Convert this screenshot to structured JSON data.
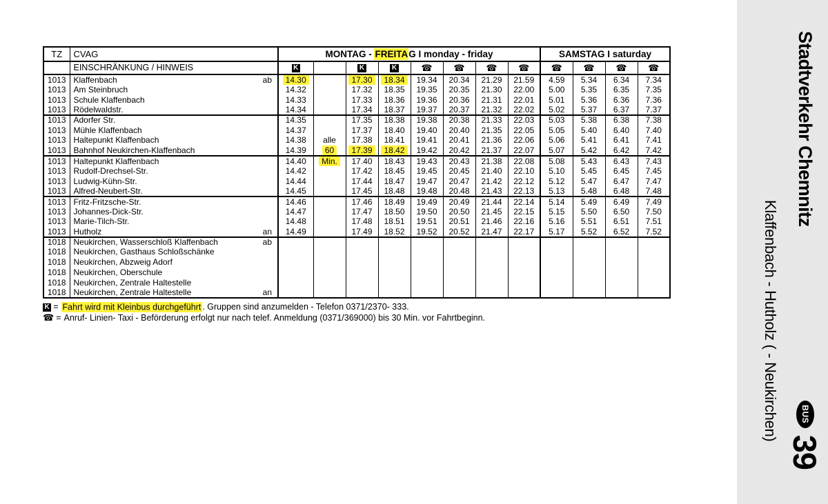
{
  "colors": {
    "highlight": "#fff23c",
    "sidebar_bg": "#e7e7e7",
    "badge_bg": "#000000"
  },
  "icons": {
    "kleinbus": "K",
    "phone": "☎"
  },
  "table": {
    "tz_header": "TZ",
    "cvag_header": "CVAG",
    "restriction_header": "EINSCHRÄNKUNG / HINWEIS",
    "monfri_prefix": "MONTAG - ",
    "monfri_highlight": "FREITA",
    "monfri_suffix": "G I monday - friday",
    "samstag_header": "SAMSTAG I saturday",
    "symbols": [
      "kleinbus",
      "",
      "kleinbus",
      "kleinbus",
      "phone",
      "phone",
      "phone",
      "phone",
      "phone",
      "phone",
      "phone",
      "phone"
    ],
    "rows": [
      {
        "tz": "1013",
        "stop": "Klaffenbach",
        "marker": "ab",
        "group_start": false,
        "hl": [
          0,
          2,
          3
        ],
        "times": [
          "14.30",
          "",
          "17.30",
          "18.34",
          "19.34",
          "20.34",
          "21.29",
          "21.59",
          "4.59",
          "5.34",
          "6.34",
          "7.34"
        ]
      },
      {
        "tz": "1013",
        "stop": "Am Steinbruch",
        "marker": "",
        "group_start": false,
        "hl": [],
        "times": [
          "14.32",
          "",
          "17.32",
          "18.35",
          "19.35",
          "20.35",
          "21.30",
          "22.00",
          "5.00",
          "5.35",
          "6.35",
          "7.35"
        ]
      },
      {
        "tz": "1013",
        "stop": "Schule Klaffenbach",
        "marker": "",
        "group_start": false,
        "hl": [],
        "times": [
          "14.33",
          "",
          "17.33",
          "18.36",
          "19.36",
          "20.36",
          "21.31",
          "22.01",
          "5.01",
          "5.36",
          "6.36",
          "7.36"
        ]
      },
      {
        "tz": "1013",
        "stop": "Rödelwaldstr.",
        "marker": "",
        "group_start": false,
        "hl": [],
        "times": [
          "14.34",
          "",
          "17.34",
          "18.37",
          "19.37",
          "20.37",
          "21.32",
          "22.02",
          "5.02",
          "5.37",
          "6.37",
          "7.37"
        ]
      },
      {
        "tz": "1013",
        "stop": "Adorfer Str.",
        "marker": "",
        "group_start": true,
        "hl": [],
        "times": [
          "14.35",
          "",
          "17.35",
          "18.38",
          "19.38",
          "20.38",
          "21.33",
          "22.03",
          "5.03",
          "5.38",
          "6.38",
          "7.38"
        ]
      },
      {
        "tz": "1013",
        "stop": "Mühle Klaffenbach",
        "marker": "",
        "group_start": false,
        "hl": [],
        "times": [
          "14.37",
          "",
          "17.37",
          "18.40",
          "19.40",
          "20.40",
          "21.35",
          "22.05",
          "5.05",
          "5.40",
          "6.40",
          "7.40"
        ]
      },
      {
        "tz": "1013",
        "stop": "Haltepunkt Klaffenbach",
        "marker": "",
        "group_start": false,
        "hl": [],
        "times": [
          "14.38",
          "alle",
          "17.38",
          "18.41",
          "19.41",
          "20.41",
          "21.36",
          "22.06",
          "5.06",
          "5.41",
          "6.41",
          "7.41"
        ]
      },
      {
        "tz": "1013",
        "stop": "Bahnhof Neukirchen-Klaffenbach",
        "marker": "",
        "group_start": false,
        "hl": [
          1,
          2,
          3
        ],
        "times": [
          "14.39",
          "60",
          "17.39",
          "18.42",
          "19.42",
          "20.42",
          "21.37",
          "22.07",
          "5.07",
          "5.42",
          "6.42",
          "7.42"
        ]
      },
      {
        "tz": "1013",
        "stop": "Haltepunkt Klaffenbach",
        "marker": "",
        "group_start": true,
        "hl": [
          1
        ],
        "times": [
          "14.40",
          "Min.",
          "17.40",
          "18.43",
          "19.43",
          "20.43",
          "21.38",
          "22.08",
          "5.08",
          "5.43",
          "6.43",
          "7.43"
        ]
      },
      {
        "tz": "1013",
        "stop": "Rudolf-Drechsel-Str.",
        "marker": "",
        "group_start": false,
        "hl": [],
        "times": [
          "14.42",
          "",
          "17.42",
          "18.45",
          "19.45",
          "20.45",
          "21.40",
          "22.10",
          "5.10",
          "5.45",
          "6.45",
          "7.45"
        ]
      },
      {
        "tz": "1013",
        "stop": "Ludwig-Kühn-Str.",
        "marker": "",
        "group_start": false,
        "hl": [],
        "times": [
          "14.44",
          "",
          "17.44",
          "18.47",
          "19.47",
          "20.47",
          "21.42",
          "22.12",
          "5.12",
          "5.47",
          "6.47",
          "7.47"
        ]
      },
      {
        "tz": "1013",
        "stop": "Alfred-Neubert-Str.",
        "marker": "",
        "group_start": false,
        "hl": [],
        "times": [
          "14.45",
          "",
          "17.45",
          "18.48",
          "19.48",
          "20.48",
          "21.43",
          "22.13",
          "5.13",
          "5.48",
          "6.48",
          "7.48"
        ]
      },
      {
        "tz": "1013",
        "stop": "Fritz-Fritzsche-Str.",
        "marker": "",
        "group_start": true,
        "hl": [],
        "times": [
          "14.46",
          "",
          "17.46",
          "18.49",
          "19.49",
          "20.49",
          "21.44",
          "22.14",
          "5.14",
          "5.49",
          "6.49",
          "7.49"
        ]
      },
      {
        "tz": "1013",
        "stop": "Johannes-Dick-Str.",
        "marker": "",
        "group_start": false,
        "hl": [],
        "times": [
          "14.47",
          "",
          "17.47",
          "18.50",
          "19.50",
          "20.50",
          "21.45",
          "22.15",
          "5.15",
          "5.50",
          "6.50",
          "7.50"
        ]
      },
      {
        "tz": "1013",
        "stop": "Marie-Tilch-Str.",
        "marker": "",
        "group_start": false,
        "hl": [],
        "times": [
          "14.48",
          "",
          "17.48",
          "18.51",
          "19.51",
          "20.51",
          "21.46",
          "22.16",
          "5.16",
          "5.51",
          "6.51",
          "7.51"
        ]
      },
      {
        "tz": "1013",
        "stop": "Hutholz",
        "marker": "an",
        "group_start": false,
        "hl": [],
        "times": [
          "14.49",
          "",
          "17.49",
          "18.52",
          "19.52",
          "20.52",
          "21.47",
          "22.17",
          "5.17",
          "5.52",
          "6.52",
          "7.52"
        ]
      },
      {
        "tz": "1018",
        "stop": "Neukirchen, Wasserschloß Klaffenbach",
        "marker": "ab",
        "group_start": true,
        "hl": [],
        "times": [
          "",
          "",
          "",
          "",
          "",
          "",
          "",
          "",
          "",
          "",
          "",
          ""
        ]
      },
      {
        "tz": "1018",
        "stop": "Neukirchen, Gasthaus Schloßschänke",
        "marker": "",
        "group_start": false,
        "hl": [],
        "times": [
          "",
          "",
          "",
          "",
          "",
          "",
          "",
          "",
          "",
          "",
          "",
          ""
        ]
      },
      {
        "tz": "1018",
        "stop": "Neukirchen, Abzweig Adorf",
        "marker": "",
        "group_start": false,
        "hl": [],
        "times": [
          "",
          "",
          "",
          "",
          "",
          "",
          "",
          "",
          "",
          "",
          "",
          ""
        ]
      },
      {
        "tz": "1018",
        "stop": "Neukirchen, Oberschule",
        "marker": "",
        "group_start": false,
        "hl": [],
        "times": [
          "",
          "",
          "",
          "",
          "",
          "",
          "",
          "",
          "",
          "",
          "",
          ""
        ]
      },
      {
        "tz": "1018",
        "stop": "Neukirchen, Zentrale Haltestelle",
        "marker": "",
        "group_start": false,
        "hl": [],
        "times": [
          "",
          "",
          "",
          "",
          "",
          "",
          "",
          "",
          "",
          "",
          "",
          ""
        ]
      },
      {
        "tz": "1018",
        "stop": "Neukirchen, Zentrale Haltestelle",
        "marker": "an",
        "group_start": false,
        "hl": [],
        "times": [
          "",
          "",
          "",
          "",
          "",
          "",
          "",
          "",
          "",
          "",
          "",
          ""
        ]
      }
    ]
  },
  "footnotes": {
    "k_symbol": "K",
    "eq": "=",
    "k_highlight": "Fahrt wird mit Kleinbus durchgeführt",
    "k_rest": ". Gruppen sind anzumelden -  Telefon 0371/2370- 333.",
    "phone_symbol": "☎",
    "phone_text": "Anruf- Linien- Taxi -  Beförderung erfolgt nur nach telef. Anmeldung (0371/369000) bis 30 Min. vor Fahrtbeginn."
  },
  "sidebar": {
    "operator": "Stadtverkehr Chemnitz",
    "route": "Klaffenbach - Hutholz ( - Neukirchen)",
    "bus_badge": "BUS",
    "line_number": "39"
  }
}
